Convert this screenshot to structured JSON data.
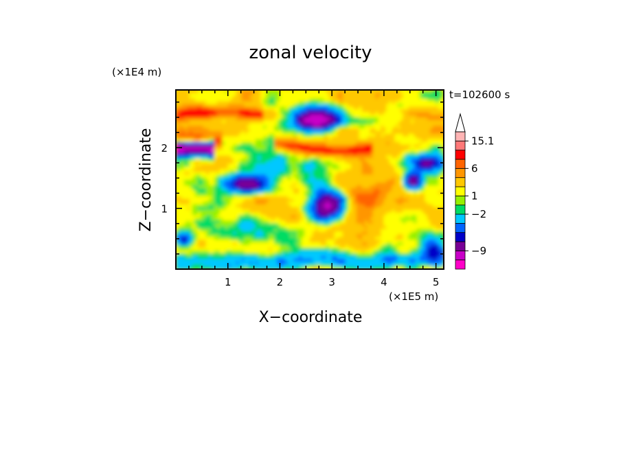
{
  "chart_data": {
    "type": "heatmap",
    "title": "zonal velocity",
    "xlabel": "X−coordinate",
    "ylabel": "Z−coordinate",
    "x_unit_label": "(×1E5 m)",
    "y_unit_label": "(×1E4 m)",
    "time_label": "t=102600 s",
    "xlim": [
      0,
      5.15
    ],
    "ylim": [
      0,
      2.95
    ],
    "x_ticks": [
      1,
      2,
      3,
      4,
      5
    ],
    "y_ticks": [
      1,
      2
    ],
    "x_tick_labels": [
      "1",
      "2",
      "3",
      "4",
      "5"
    ],
    "y_tick_labels": [
      "1",
      "2"
    ],
    "colorbar": {
      "colors": [
        "#ff00c8",
        "#c800c8",
        "#780096",
        "#0000c8",
        "#0064ff",
        "#00c8ff",
        "#00dc64",
        "#96f000",
        "#ffff00",
        "#ffc800",
        "#ff9600",
        "#ff6400",
        "#ff0000",
        "#ff7878",
        "#ffb4b4"
      ],
      "labels": [
        {
          "level_index": 14,
          "text": "15.1"
        },
        {
          "level_index": 11,
          "text": "6"
        },
        {
          "level_index": 8,
          "text": "1"
        },
        {
          "level_index": 6,
          "text": "−2"
        },
        {
          "level_index": 2,
          "text": "−9"
        }
      ]
    }
  }
}
